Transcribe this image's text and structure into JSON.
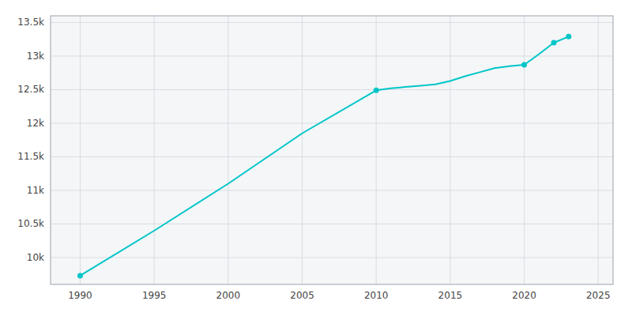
{
  "chart_data": {
    "type": "line",
    "series": [
      {
        "type": "line",
        "color": "#00c5c8",
        "x": [
          1990,
          1995,
          2000,
          2005,
          2010,
          2011,
          2012,
          2013,
          2014,
          2015,
          2016,
          2017,
          2018,
          2019,
          2020,
          2021,
          2022,
          2023
        ],
        "values": [
          9730,
          10400,
          11100,
          11850,
          12490,
          12520,
          12540,
          12560,
          12580,
          12630,
          12700,
          12760,
          12820,
          12850,
          12870,
          13030,
          13200,
          13290
        ]
      },
      {
        "type": "scatter",
        "color": "#00c5c8",
        "marker": "circle",
        "x": [
          1990,
          2010,
          2020,
          2022,
          2023
        ],
        "values": [
          9730,
          12490,
          12870,
          13200,
          13290
        ]
      }
    ],
    "xlim": [
      1988,
      2026
    ],
    "xticks": [
      1990,
      1995,
      2000,
      2005,
      2010,
      2015,
      2020,
      2025
    ],
    "ylim": [
      9600,
      13600
    ],
    "yticks": [
      {
        "value": 10000,
        "label": "10k"
      },
      {
        "value": 10500,
        "label": "10.5k"
      },
      {
        "value": 11000,
        "label": "11k"
      },
      {
        "value": 11500,
        "label": "11.5k"
      },
      {
        "value": 12000,
        "label": "12k"
      },
      {
        "value": 12500,
        "label": "12.5k"
      },
      {
        "value": 13000,
        "label": "13k"
      },
      {
        "value": 13500,
        "label": "13.5k"
      }
    ],
    "grid": true
  }
}
